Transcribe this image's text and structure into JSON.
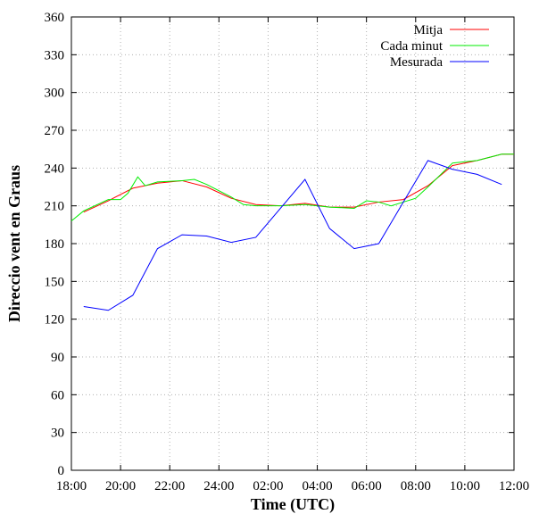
{
  "chart_data": {
    "type": "line",
    "xlabel": "Time (UTC)",
    "ylabel": "Direccio vent en Graus",
    "xlim": [
      18,
      36
    ],
    "ylim": [
      0,
      360
    ],
    "xticks": [
      {
        "value": 18,
        "label": "18:00"
      },
      {
        "value": 20,
        "label": "20:00"
      },
      {
        "value": 22,
        "label": "22:00"
      },
      {
        "value": 24,
        "label": "24:00"
      },
      {
        "value": 26,
        "label": "02:00"
      },
      {
        "value": 28,
        "label": "04:00"
      },
      {
        "value": 30,
        "label": "06:00"
      },
      {
        "value": 32,
        "label": "08:00"
      },
      {
        "value": 34,
        "label": "10:00"
      },
      {
        "value": 36,
        "label": "12:00"
      }
    ],
    "yticks": [
      0,
      30,
      60,
      90,
      120,
      150,
      180,
      210,
      240,
      270,
      300,
      330,
      360
    ],
    "grid": true,
    "legend": "top-right",
    "series": [
      {
        "name": "Mitja",
        "color": "#ff0000",
        "x": [
          18.5,
          19.5,
          20.5,
          21.5,
          22.5,
          23.5,
          24.5,
          25.5,
          26.5,
          27.5,
          28.5,
          29.5,
          30.5,
          31.5,
          32.5,
          33.5,
          34.5,
          35.5,
          36
        ],
        "values": [
          205,
          214,
          224,
          228,
          230,
          225,
          216,
          211,
          210,
          212,
          209,
          209,
          213,
          215,
          226,
          242,
          246,
          251,
          251
        ]
      },
      {
        "name": "Cada minut",
        "color": "#00ee00",
        "x": [
          18,
          18.5,
          19.5,
          20,
          20.3,
          20.7,
          21,
          21.5,
          22.5,
          23,
          23.5,
          24.5,
          25,
          25.5,
          26.5,
          27.5,
          28.5,
          29.5,
          30,
          30.5,
          31,
          31.5,
          32,
          32.5,
          33.5,
          34.5,
          35.5,
          36
        ],
        "values": [
          198,
          206,
          215,
          215,
          220,
          233,
          226,
          229,
          230,
          231,
          227,
          217,
          211,
          210,
          210,
          211,
          209,
          208,
          214,
          213,
          210,
          213,
          216,
          225,
          244,
          246,
          251,
          251
        ]
      },
      {
        "name": "Mesurada",
        "color": "#0000ff",
        "x": [
          18.5,
          19.5,
          20.5,
          21.5,
          22.5,
          23.5,
          24.5,
          25.5,
          27.5,
          28.5,
          29.5,
          30.5,
          32.5,
          33.5,
          34.5,
          35.5
        ],
        "values": [
          130,
          127,
          139,
          176,
          187,
          186,
          181,
          185,
          231,
          192,
          176,
          180,
          246,
          239,
          235,
          227
        ]
      }
    ]
  }
}
